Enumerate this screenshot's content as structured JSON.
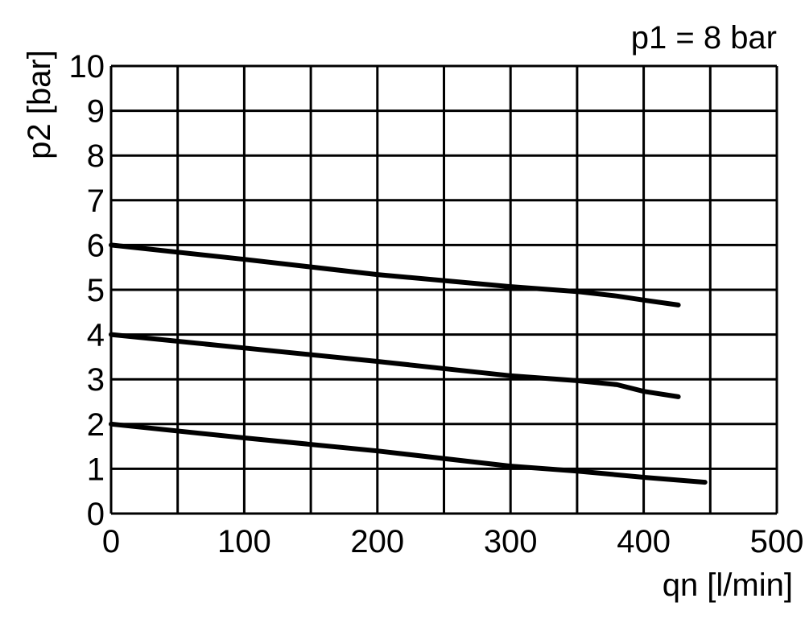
{
  "chart_data": {
    "type": "line",
    "title": "",
    "annotation": "p1 = 8 bar",
    "xlabel": "qn [l/min]",
    "ylabel": "p2 [bar]",
    "xlim": [
      0,
      500
    ],
    "ylim": [
      0,
      10
    ],
    "x_grid_step": 50,
    "x_ticks": [
      0,
      100,
      200,
      300,
      400,
      500
    ],
    "y_ticks": [
      0,
      1,
      2,
      3,
      4,
      5,
      6,
      7,
      8,
      9,
      10
    ],
    "grid": true,
    "series": [
      {
        "x": [
          0,
          100,
          200,
          300,
          350,
          380,
          400,
          426
        ],
        "y": [
          6.0,
          5.68,
          5.34,
          5.07,
          4.96,
          4.86,
          4.77,
          4.66
        ]
      },
      {
        "x": [
          0,
          100,
          200,
          300,
          350,
          380,
          400,
          426
        ],
        "y": [
          4.0,
          3.7,
          3.4,
          3.08,
          2.97,
          2.88,
          2.73,
          2.61
        ]
      },
      {
        "x": [
          0,
          100,
          200,
          300,
          350,
          400,
          446
        ],
        "y": [
          2.0,
          1.69,
          1.4,
          1.06,
          0.95,
          0.81,
          0.7
        ]
      }
    ],
    "colors": {
      "line": "#000000",
      "grid": "#000000"
    }
  }
}
